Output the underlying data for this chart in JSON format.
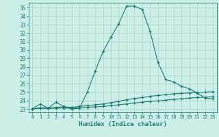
{
  "title": "",
  "xlabel": "Humidex (Indice chaleur)",
  "ylabel": "",
  "background_color": "#cceee8",
  "grid_color": "#b0d8d0",
  "line_color": "#1a7a6e",
  "xlim": [
    -0.5,
    23.5
  ],
  "ylim": [
    22.6,
    35.6
  ],
  "xticks": [
    0,
    1,
    2,
    3,
    4,
    5,
    6,
    7,
    8,
    9,
    10,
    11,
    12,
    13,
    14,
    15,
    16,
    17,
    18,
    19,
    20,
    21,
    22,
    23
  ],
  "yticks": [
    23,
    24,
    25,
    26,
    27,
    28,
    29,
    30,
    31,
    32,
    33,
    34,
    35
  ],
  "line1_x": [
    0,
    1,
    2,
    3,
    4,
    5,
    6,
    7,
    8,
    9,
    10,
    11,
    12,
    13,
    14,
    15,
    16,
    17,
    18,
    19,
    20,
    21,
    22,
    23
  ],
  "line1_y": [
    23.0,
    23.6,
    23.1,
    23.8,
    23.3,
    23.0,
    23.1,
    25.0,
    27.5,
    29.8,
    31.5,
    33.1,
    35.2,
    35.2,
    34.8,
    32.2,
    28.5,
    26.5,
    26.2,
    25.7,
    25.4,
    24.9,
    24.3,
    24.2
  ],
  "line2_x": [
    0,
    1,
    2,
    3,
    4,
    5,
    6,
    7,
    8,
    9,
    10,
    11,
    12,
    13,
    14,
    15,
    16,
    17,
    18,
    19,
    20,
    21,
    22,
    23
  ],
  "line2_y": [
    23.0,
    23.15,
    23.1,
    23.2,
    23.25,
    23.2,
    23.3,
    23.4,
    23.5,
    23.6,
    23.75,
    23.9,
    24.1,
    24.25,
    24.35,
    24.5,
    24.6,
    24.7,
    24.8,
    24.85,
    24.9,
    24.95,
    25.0,
    25.05
  ],
  "line3_x": [
    0,
    1,
    2,
    3,
    4,
    5,
    6,
    7,
    8,
    9,
    10,
    11,
    12,
    13,
    14,
    15,
    16,
    17,
    18,
    19,
    20,
    21,
    22,
    23
  ],
  "line3_y": [
    23.0,
    23.08,
    23.05,
    23.1,
    23.12,
    23.1,
    23.15,
    23.2,
    23.25,
    23.3,
    23.4,
    23.5,
    23.6,
    23.7,
    23.8,
    23.9,
    23.95,
    24.05,
    24.15,
    24.2,
    24.3,
    24.35,
    24.4,
    24.45
  ]
}
